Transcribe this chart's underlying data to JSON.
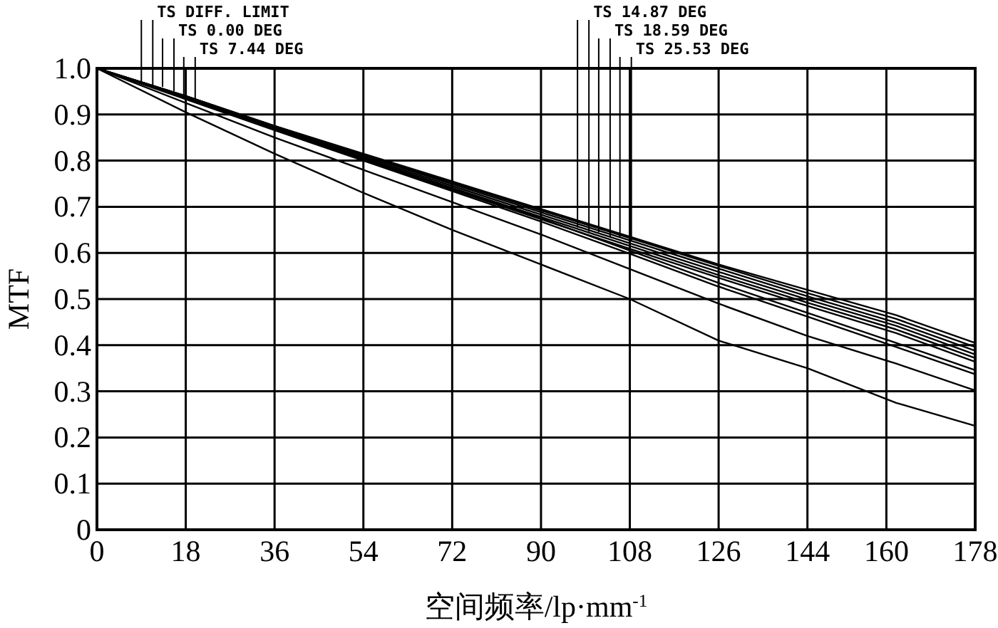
{
  "chart_data": {
    "type": "line",
    "xlabel": "空间频率/lp·mm$^{-1}$",
    "ylabel": "MTF",
    "x": [
      0,
      18,
      36,
      54,
      72,
      90,
      108,
      126,
      144,
      162,
      178
    ],
    "series": [
      {
        "color": "#000000",
        "values": [
          1,
          0.94,
          0.875,
          0.815,
          0.755,
          0.695,
          0.635,
          0.575,
          0.52,
          0.465,
          0.405
        ]
      },
      {
        "color": "#000000",
        "values": [
          1,
          0.94,
          0.875,
          0.813,
          0.752,
          0.692,
          0.632,
          0.572,
          0.513,
          0.457,
          0.396
        ]
      },
      {
        "color": "#000000",
        "values": [
          1,
          0.94,
          0.874,
          0.811,
          0.749,
          0.688,
          0.627,
          0.566,
          0.506,
          0.449,
          0.388
        ]
      },
      {
        "color": "#000000",
        "values": [
          1,
          0.939,
          0.872,
          0.808,
          0.745,
          0.683,
          0.621,
          0.559,
          0.499,
          0.442,
          0.38
        ]
      },
      {
        "color": "#000000",
        "values": [
          1,
          0.938,
          0.87,
          0.805,
          0.741,
          0.678,
          0.615,
          0.552,
          0.492,
          0.434,
          0.372
        ]
      },
      {
        "color": "#000000",
        "values": [
          1,
          0.937,
          0.868,
          0.802,
          0.737,
          0.673,
          0.609,
          0.546,
          0.485,
          0.426,
          0.364
        ]
      },
      {
        "color": "#000000",
        "values": [
          1,
          0.935,
          0.87,
          0.805,
          0.74,
          0.675,
          0.605,
          0.535,
          0.47,
          0.405,
          0.346
        ]
      },
      {
        "color": "#000000",
        "values": [
          1,
          0.933,
          0.866,
          0.8,
          0.734,
          0.668,
          0.598,
          0.527,
          0.462,
          0.396,
          0.337
        ]
      },
      {
        "color": "#000000",
        "values": [
          1,
          0.925,
          0.85,
          0.78,
          0.71,
          0.64,
          0.565,
          0.49,
          0.42,
          0.36,
          0.302
        ]
      },
      {
        "color": "#000000",
        "values": [
          1,
          0.905,
          0.815,
          0.73,
          0.65,
          0.575,
          0.5,
          0.41,
          0.35,
          0.275,
          0.225
        ]
      }
    ],
    "xlim": [
      0,
      178
    ],
    "xticks": [
      0,
      18,
      36,
      54,
      72,
      90,
      108,
      126,
      144,
      160,
      178
    ],
    "ylim": [
      0,
      1
    ],
    "yticks": [
      0,
      0.1,
      0.2,
      0.3,
      0.4,
      0.5,
      0.6,
      0.7,
      0.8,
      0.9,
      {
        "value": 1,
        "label": "1.0"
      }
    ],
    "grid": true,
    "marker": "none",
    "line_style": "solid",
    "annotations": [
      {
        "text": "TS DIFF. LIMIT",
        "x": 9,
        "y": 0.97
      },
      {
        "text": "TS 0.00 DEG",
        "x": 13.3,
        "y": 0.96
      },
      {
        "text": "TS 7.44 DEG",
        "x": 17.6,
        "y": 0.94
      },
      {
        "text": "TS 14.87 DEG",
        "x": 97.4,
        "y": 0.655
      },
      {
        "text": "TS 18.59 DEG",
        "x": 101.7,
        "y": 0.645
      },
      {
        "text": "TS 25.53 DEG",
        "x": 106,
        "y": 0.635
      }
    ]
  }
}
